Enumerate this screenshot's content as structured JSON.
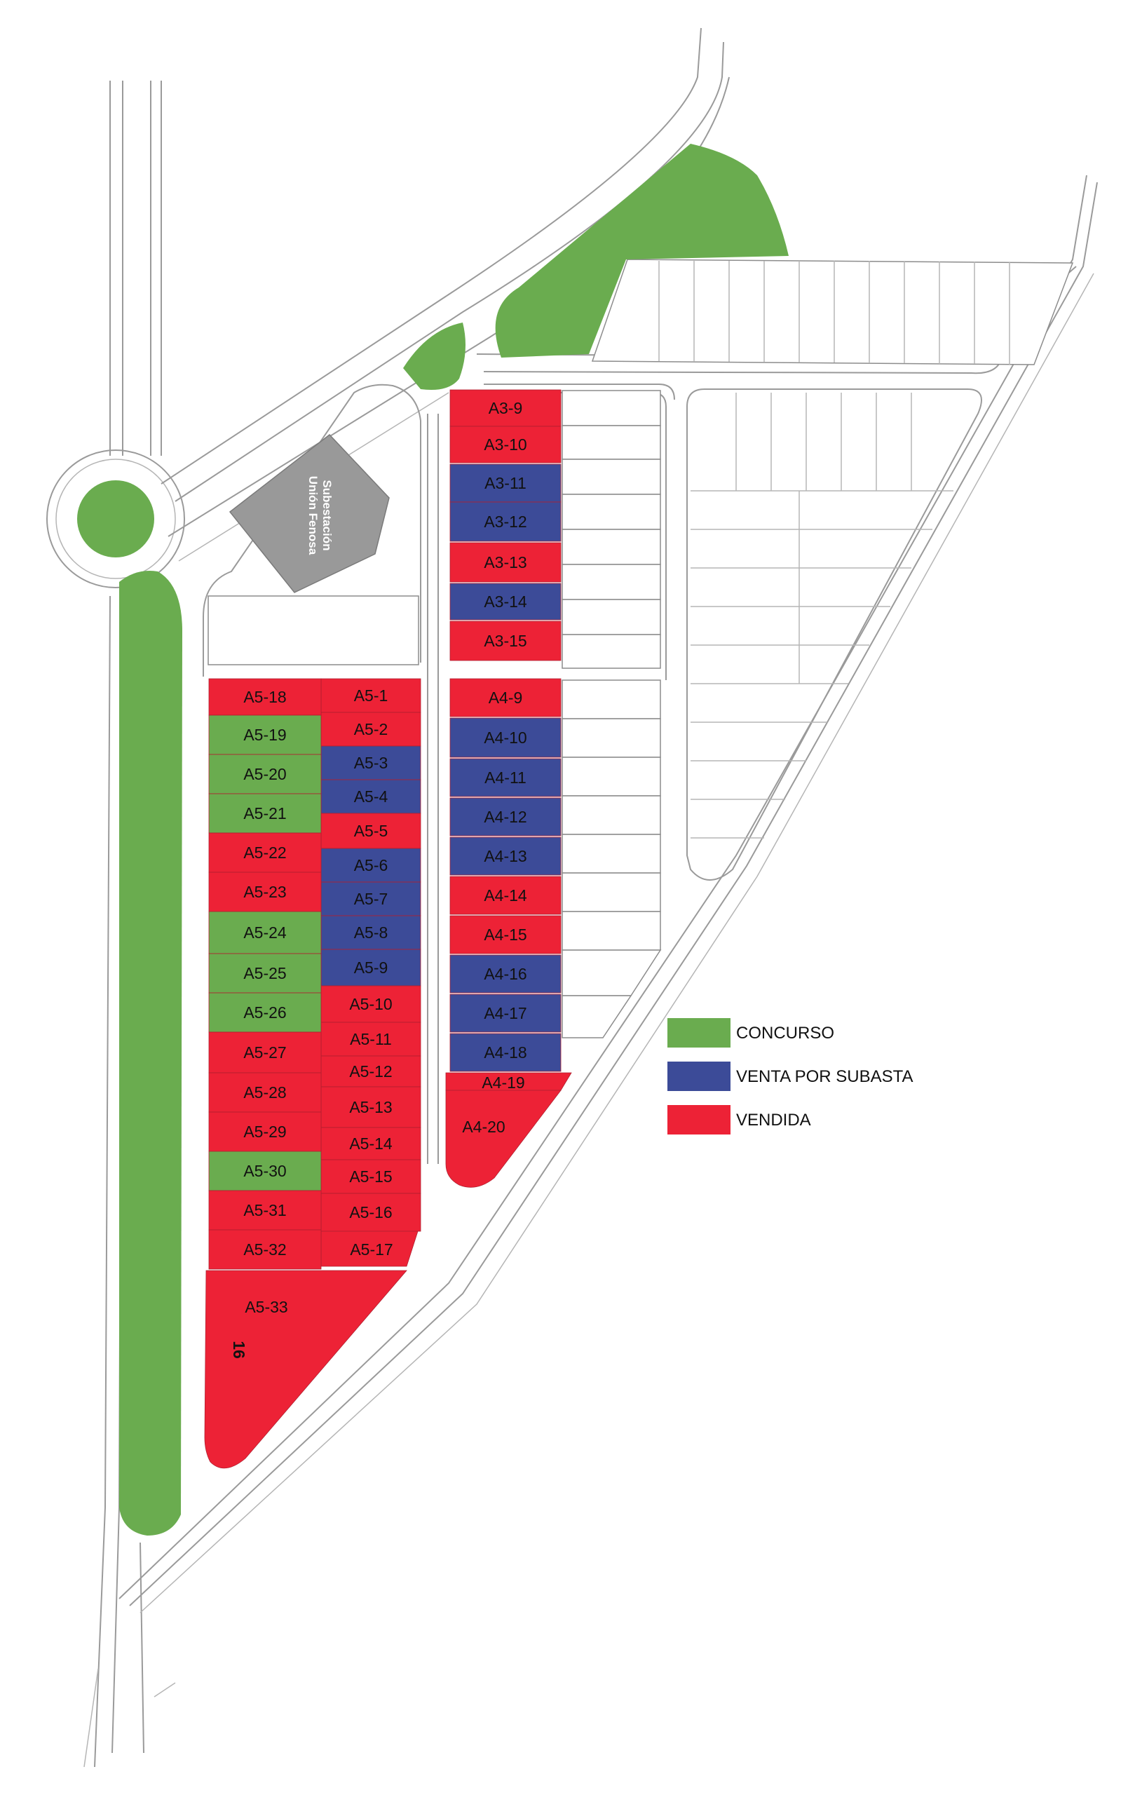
{
  "colors": {
    "concurso": "#6aac4f",
    "subasta": "#3c4b98",
    "vendida": "#ed2236",
    "building": "#999999"
  },
  "legend": [
    {
      "key": "concurso",
      "label": "CONCURSO"
    },
    {
      "key": "subasta",
      "label": "VENTA POR SUBASTA"
    },
    {
      "key": "vendida",
      "label": "VENDIDA"
    }
  ],
  "substation": {
    "line1": "Subestación",
    "line2": "Unión Fenosa"
  },
  "area_number": "16",
  "plots": [
    {
      "id": "A3-9",
      "status": "vendida"
    },
    {
      "id": "A3-10",
      "status": "vendida"
    },
    {
      "id": "A3-11",
      "status": "subasta"
    },
    {
      "id": "A3-12",
      "status": "subasta"
    },
    {
      "id": "A3-13",
      "status": "vendida"
    },
    {
      "id": "A3-14",
      "status": "subasta"
    },
    {
      "id": "A3-15",
      "status": "vendida"
    },
    {
      "id": "A4-9",
      "status": "vendida"
    },
    {
      "id": "A4-10",
      "status": "subasta"
    },
    {
      "id": "A4-11",
      "status": "subasta"
    },
    {
      "id": "A4-12",
      "status": "subasta"
    },
    {
      "id": "A4-13",
      "status": "subasta"
    },
    {
      "id": "A4-14",
      "status": "vendida"
    },
    {
      "id": "A4-15",
      "status": "vendida"
    },
    {
      "id": "A4-16",
      "status": "subasta"
    },
    {
      "id": "A4-17",
      "status": "subasta"
    },
    {
      "id": "A4-18",
      "status": "subasta"
    },
    {
      "id": "A4-19",
      "status": "vendida"
    },
    {
      "id": "A4-20",
      "status": "vendida"
    },
    {
      "id": "A5-1",
      "status": "vendida"
    },
    {
      "id": "A5-2",
      "status": "vendida"
    },
    {
      "id": "A5-3",
      "status": "subasta"
    },
    {
      "id": "A5-4",
      "status": "subasta"
    },
    {
      "id": "A5-5",
      "status": "vendida"
    },
    {
      "id": "A5-6",
      "status": "subasta"
    },
    {
      "id": "A5-7",
      "status": "subasta"
    },
    {
      "id": "A5-8",
      "status": "subasta"
    },
    {
      "id": "A5-9",
      "status": "subasta"
    },
    {
      "id": "A5-10",
      "status": "vendida"
    },
    {
      "id": "A5-11",
      "status": "vendida"
    },
    {
      "id": "A5-12",
      "status": "vendida"
    },
    {
      "id": "A5-13",
      "status": "vendida"
    },
    {
      "id": "A5-14",
      "status": "vendida"
    },
    {
      "id": "A5-15",
      "status": "vendida"
    },
    {
      "id": "A5-16",
      "status": "vendida"
    },
    {
      "id": "A5-17",
      "status": "vendida"
    },
    {
      "id": "A5-18",
      "status": "vendida"
    },
    {
      "id": "A5-19",
      "status": "concurso"
    },
    {
      "id": "A5-20",
      "status": "concurso"
    },
    {
      "id": "A5-21",
      "status": "concurso"
    },
    {
      "id": "A5-22",
      "status": "vendida"
    },
    {
      "id": "A5-23",
      "status": "vendida"
    },
    {
      "id": "A5-24",
      "status": "concurso"
    },
    {
      "id": "A5-25",
      "status": "concurso"
    },
    {
      "id": "A5-26",
      "status": "concurso"
    },
    {
      "id": "A5-27",
      "status": "vendida"
    },
    {
      "id": "A5-28",
      "status": "vendida"
    },
    {
      "id": "A5-29",
      "status": "vendida"
    },
    {
      "id": "A5-30",
      "status": "concurso"
    },
    {
      "id": "A5-31",
      "status": "vendida"
    },
    {
      "id": "A5-32",
      "status": "vendida"
    },
    {
      "id": "A5-33",
      "status": "vendida"
    }
  ]
}
